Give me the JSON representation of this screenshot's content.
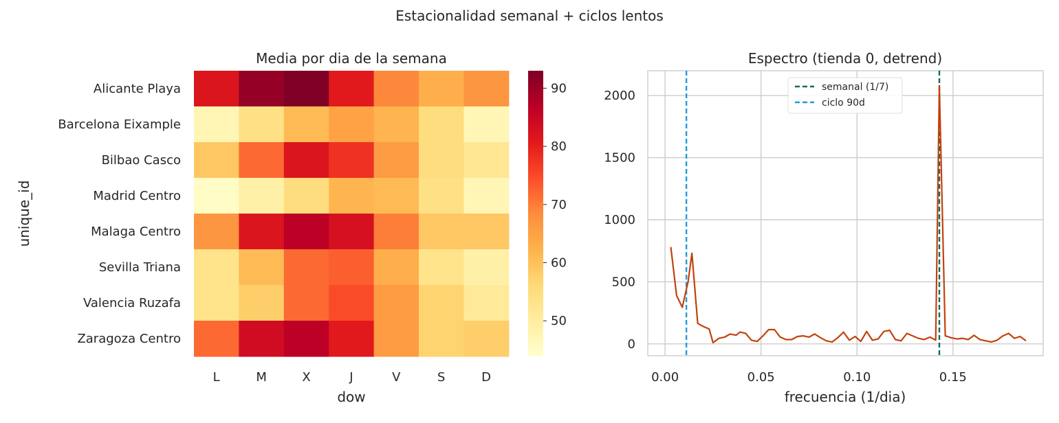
{
  "figure_title": "Estacionalidad semanal + ciclos lentos",
  "chart_data": [
    {
      "type": "heatmap",
      "title": "Media por dia de la semana",
      "xlabel": "dow",
      "ylabel": "unique_id",
      "x": [
        "L",
        "M",
        "X",
        "J",
        "V",
        "S",
        "D"
      ],
      "y": [
        "Alicante Playa",
        "Barcelona Eixample",
        "Bilbao Casco",
        "Madrid Centro",
        "Malaga Centro",
        "Sevilla Triana",
        "Valencia Ruzafa",
        "Zaragoza Centro"
      ],
      "values": [
        [
          82,
          91,
          93,
          81,
          69,
          63,
          67
        ],
        [
          47,
          54,
          61,
          65,
          62,
          55,
          47
        ],
        [
          59,
          72,
          82,
          78,
          66,
          55,
          52
        ],
        [
          45,
          49,
          55,
          62,
          61,
          54,
          47
        ],
        [
          67,
          82,
          87,
          83,
          70,
          59,
          59
        ],
        [
          53,
          61,
          72,
          73,
          63,
          53,
          49
        ],
        [
          53,
          58,
          72,
          75,
          66,
          57,
          51
        ],
        [
          72,
          84,
          87,
          81,
          66,
          57,
          58
        ]
      ],
      "colormap": "YlOrRd",
      "colorbar": {
        "min": 44,
        "max": 93,
        "ticks": [
          50,
          60,
          70,
          80,
          90
        ]
      }
    },
    {
      "type": "line",
      "title": "Espectro (tienda 0, detrend)",
      "xlabel": "frecuencia (1/dia)",
      "ylabel": "",
      "xlim": [
        -0.009,
        0.197
      ],
      "ylim": [
        -95,
        2200
      ],
      "xticks": [
        0.0,
        0.05,
        0.1,
        0.15
      ],
      "xtick_labels": [
        "0.00",
        "0.05",
        "0.10",
        "0.15"
      ],
      "yticks": [
        0,
        500,
        1000,
        1500,
        2000
      ],
      "grid": true,
      "legend_position": "upper-center",
      "series": [
        {
          "color": "#c2410c",
          "x": [
            0.003,
            0.006,
            0.009,
            0.012,
            0.014,
            0.017,
            0.02,
            0.023,
            0.025,
            0.028,
            0.031,
            0.034,
            0.037,
            0.039,
            0.042,
            0.045,
            0.048,
            0.051,
            0.054,
            0.057,
            0.06,
            0.063,
            0.066,
            0.069,
            0.072,
            0.075,
            0.078,
            0.081,
            0.084,
            0.087,
            0.09,
            0.093,
            0.096,
            0.099,
            0.102,
            0.105,
            0.108,
            0.111,
            0.114,
            0.117,
            0.12,
            0.123,
            0.126,
            0.129,
            0.132,
            0.135,
            0.138,
            0.141,
            0.1429,
            0.146,
            0.149,
            0.152,
            0.155,
            0.158,
            0.161,
            0.164,
            0.167,
            0.17,
            0.173,
            0.176,
            0.179,
            0.182,
            0.185,
            0.188
          ],
          "y": [
            780,
            390,
            295,
            500,
            730,
            165,
            140,
            120,
            10,
            45,
            55,
            80,
            70,
            95,
            85,
            30,
            20,
            65,
            115,
            115,
            55,
            35,
            35,
            60,
            65,
            55,
            80,
            50,
            25,
            15,
            50,
            95,
            30,
            60,
            20,
            100,
            30,
            40,
            100,
            110,
            35,
            25,
            85,
            65,
            45,
            35,
            55,
            30,
            2080,
            65,
            50,
            40,
            45,
            35,
            70,
            35,
            25,
            15,
            30,
            65,
            85,
            45,
            60,
            25
          ]
        }
      ],
      "vlines": [
        {
          "x": 0.1429,
          "label": "semanal (1/7)",
          "color": "#0f6b5f"
        },
        {
          "x": 0.0111,
          "label": "ciclo 90d",
          "color": "#1f9bdc"
        }
      ]
    }
  ]
}
